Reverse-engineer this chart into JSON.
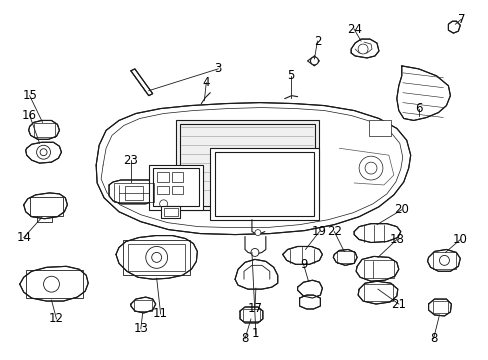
{
  "background_color": "#ffffff",
  "line_color": "#1a1a1a",
  "text_color": "#000000",
  "figsize": [
    4.89,
    3.6
  ],
  "dpi": 100,
  "label_fontsize": 8.5,
  "leader_lw": 0.6,
  "part_lw": 0.8
}
